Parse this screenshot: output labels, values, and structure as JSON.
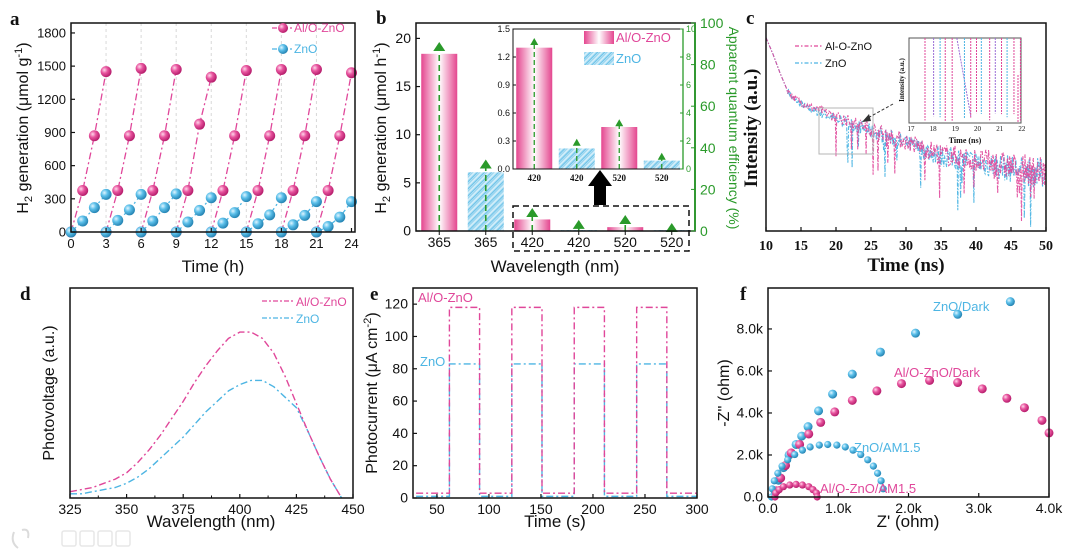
{
  "figure": {
    "panel_labels": [
      "a",
      "b",
      "c",
      "d",
      "e",
      "f"
    ]
  },
  "watermark": "大数跨境",
  "colors": {
    "al": "#e0479a",
    "zno": "#4db5e3",
    "aqe": "#2a9a2a",
    "axis": "#111111"
  },
  "chart_data": [
    {
      "panel": "a",
      "type": "scatter-line",
      "xlabel": "Time (h)",
      "ylabel": {
        "p1": "H",
        "sub": "2",
        "p2": " generation (μmol g",
        "sup": "-1",
        "p3": ")"
      },
      "xlim": [
        0,
        24.3
      ],
      "ylim": [
        0,
        1890
      ],
      "xticks": [
        0,
        3,
        6,
        9,
        12,
        15,
        18,
        21,
        24
      ],
      "xtick_labels": [
        "0",
        "3",
        "6",
        "9",
        "12",
        "15",
        "18",
        "21",
        "24"
      ],
      "yticks": [
        0,
        300,
        600,
        900,
        1200,
        1500,
        1800
      ],
      "ytick_labels": [
        "0",
        "300",
        "600",
        "900",
        "1200",
        "1500",
        "1800"
      ],
      "legend": "top-right",
      "series": [
        {
          "name": "Al/O-ZnO",
          "cycle_hours": 3,
          "cycles": [
            [
              0,
              375,
              870,
              1450
            ],
            [
              0,
              375,
              870,
              1480
            ],
            [
              0,
              375,
              870,
              1470
            ],
            [
              0,
              375,
              975,
              1400
            ],
            [
              0,
              375,
              870,
              1460
            ],
            [
              0,
              375,
              870,
              1470
            ],
            [
              0,
              375,
              870,
              1470
            ],
            [
              0,
              375,
              870,
              1440
            ]
          ]
        },
        {
          "name": "ZnO",
          "cycle_hours": 3,
          "cycles": [
            [
              0,
              100,
              220,
              340
            ],
            [
              0,
              105,
              200,
              340
            ],
            [
              0,
              100,
              220,
              345
            ],
            [
              0,
              90,
              195,
              310
            ],
            [
              0,
              80,
              175,
              320
            ],
            [
              0,
              75,
              155,
              310
            ],
            [
              0,
              65,
              150,
              275
            ],
            [
              0,
              50,
              135,
              275
            ]
          ]
        }
      ]
    },
    {
      "panel": "b",
      "type": "bar",
      "xlabel": "Wavelength (nm)",
      "ylabel": {
        "p1": "H",
        "sub": "2",
        "p2": " generation (μmol h",
        "sup": "-1",
        "p3": ")"
      },
      "y2label": "Apparent quantum efficiency (%)",
      "categories": [
        "365",
        "365",
        "420",
        "420",
        "520",
        "520"
      ],
      "groups": [
        "Al/O-ZnO",
        "ZnO",
        "Al/O-ZnO",
        "ZnO",
        "Al/O-ZnO",
        "ZnO"
      ],
      "values": [
        18.4,
        6.1,
        1.2,
        0.1,
        0.4,
        0.1
      ],
      "aqe": [
        87.5,
        31,
        7.7,
        2,
        4.3,
        0.5
      ],
      "ylim": [
        0,
        21.6
      ],
      "yticks": [
        0,
        5,
        10,
        15,
        20
      ],
      "ytick_labels": [
        "0",
        "5",
        "10",
        "15",
        "20"
      ],
      "y2lim": [
        0,
        100
      ],
      "y2ticks": [
        0,
        20,
        40,
        60,
        80,
        100
      ],
      "y2tick_labels": [
        "0",
        "20",
        "40",
        "60",
        "80",
        "100"
      ],
      "inset": {
        "categories": [
          "420",
          "420",
          "520",
          "520"
        ],
        "groups": [
          "Al/O-ZnO",
          "ZnO",
          "Al/O-ZnO",
          "ZnO"
        ],
        "values": [
          1.3,
          0.22,
          0.45,
          0.09
        ],
        "aqe": [
          9.0,
          1.8,
          3.2,
          0.8
        ],
        "ylim": [
          0,
          1.5
        ],
        "yticks": [
          0,
          0.3,
          0.6,
          0.9,
          1.2,
          1.5
        ],
        "ytick_labels": [
          "0.0",
          "0.3",
          "0.6",
          "0.9",
          "1.2",
          "1.5"
        ],
        "y2lim": [
          0,
          10
        ],
        "y2ticks": [
          0,
          2,
          4,
          6,
          8,
          10
        ],
        "y2tick_labels": [
          "0",
          "2",
          "4",
          "6",
          "8",
          "10"
        ],
        "legend": [
          "Al/O-ZnO",
          "ZnO"
        ]
      }
    },
    {
      "panel": "c",
      "type": "line",
      "xlabel": "Time (ns)",
      "ylabel": "Intensity (a.u.)",
      "xlim": [
        10,
        50
      ],
      "ylim": [
        0,
        1
      ],
      "xticks": [
        10,
        15,
        20,
        25,
        30,
        35,
        40,
        45,
        50
      ],
      "xtick_labels": [
        "10",
        "15",
        "20",
        "25",
        "30",
        "35",
        "40",
        "45",
        "50"
      ],
      "legend": [
        "Al-O-ZnO",
        "ZnO"
      ],
      "series": [
        {
          "name": "Al-O-ZnO",
          "t": [
            10,
            11,
            12,
            13,
            14,
            16,
            20,
            25,
            30,
            35,
            40,
            45,
            50
          ],
          "y": [
            0.93,
            0.85,
            0.76,
            0.68,
            0.64,
            0.6,
            0.55,
            0.49,
            0.43,
            0.37,
            0.34,
            0.31,
            0.28
          ]
        },
        {
          "name": "ZnO",
          "t": [
            10,
            11,
            12,
            13,
            14,
            16,
            20,
            25,
            30,
            35,
            40,
            45,
            50
          ],
          "y": [
            0.93,
            0.85,
            0.76,
            0.68,
            0.63,
            0.59,
            0.54,
            0.48,
            0.42,
            0.36,
            0.33,
            0.3,
            0.27
          ]
        }
      ],
      "inset": {
        "xlabel": "Time (ns)",
        "ylabel": "Intensity (a.u.)",
        "xtick_labels": [
          "17",
          "18",
          "19",
          "20",
          "21",
          "22"
        ]
      }
    },
    {
      "panel": "d",
      "type": "line",
      "xlabel": "Wavelength (nm)",
      "ylabel": "Photovoltage (a.u.)",
      "xlim": [
        325,
        450
      ],
      "ylim": [
        0,
        1
      ],
      "xticks": [
        325,
        350,
        375,
        400,
        425,
        450
      ],
      "xtick_labels": [
        "325",
        "350",
        "375",
        "400",
        "425",
        "450"
      ],
      "legend": "top-right",
      "x": [
        325,
        330,
        335,
        340,
        345,
        350,
        355,
        360,
        365,
        370,
        375,
        380,
        385,
        390,
        395,
        400,
        405,
        410,
        415,
        420,
        425,
        430,
        435,
        440,
        445
      ],
      "series": [
        {
          "name": "Al/O-ZnO",
          "values": [
            0.03,
            0.04,
            0.05,
            0.07,
            0.09,
            0.12,
            0.17,
            0.23,
            0.3,
            0.38,
            0.46,
            0.55,
            0.63,
            0.7,
            0.76,
            0.79,
            0.79,
            0.76,
            0.69,
            0.58,
            0.45,
            0.32,
            0.2,
            0.09,
            0.0
          ]
        },
        {
          "name": "ZnO",
          "values": [
            0.02,
            0.02,
            0.03,
            0.04,
            0.05,
            0.07,
            0.1,
            0.14,
            0.19,
            0.24,
            0.29,
            0.35,
            0.41,
            0.46,
            0.51,
            0.54,
            0.56,
            0.56,
            0.53,
            0.48,
            0.43,
            0.32,
            0.2,
            0.09,
            0.0
          ]
        }
      ]
    },
    {
      "panel": "e",
      "type": "line",
      "xlabel": "Time (s)",
      "ylabel": {
        "p1": "Photocurrent (μA cm",
        "sup": "-2",
        "p3": ")"
      },
      "xlim": [
        27,
        300
      ],
      "ylim": [
        0,
        130
      ],
      "xticks": [
        50,
        100,
        150,
        200,
        250,
        300
      ],
      "xtick_labels": [
        "50",
        "100",
        "150",
        "200",
        "250",
        "300"
      ],
      "yticks": [
        0,
        20,
        40,
        60,
        80,
        100,
        120
      ],
      "ytick_labels": [
        "0",
        "20",
        "40",
        "60",
        "80",
        "100",
        "120"
      ],
      "time_range": [
        30,
        300
      ],
      "series": [
        {
          "name": "Al/O-ZnO",
          "on_periods": [
            [
              62,
              91
            ],
            [
              122,
              151
            ],
            [
              182,
              211
            ],
            [
              242,
              271
            ]
          ],
          "on": 118,
          "off": 3
        },
        {
          "name": "ZnO",
          "on_periods": [
            [
              62,
              91
            ],
            [
              122,
              151
            ],
            [
              182,
              211
            ],
            [
              242,
              271
            ]
          ],
          "on": 83,
          "off": 1
        }
      ]
    },
    {
      "panel": "f",
      "type": "scatter",
      "xlabel": "Z' (ohm)",
      "ylabel": "-Z'' (ohm)",
      "units": "kΩ",
      "xlim": [
        0,
        4.0
      ],
      "ylim": [
        0,
        9.95
      ],
      "xticks": [
        0,
        1,
        2,
        3,
        4
      ],
      "xtick_labels": [
        "0.0",
        "1.0k",
        "2.0k",
        "3.0k",
        "4.0k"
      ],
      "yticks": [
        0,
        2,
        4,
        6,
        8
      ],
      "ytick_labels": [
        "0.0",
        "2.0k",
        "4.0k",
        "6.0k",
        "8.0k"
      ],
      "series": [
        {
          "name": "ZnO/Dark",
          "color": "zno",
          "points": [
            [
              0.1,
              0.3
            ],
            [
              0.15,
              0.8
            ],
            [
              0.22,
              1.4
            ],
            [
              0.3,
              2.0
            ],
            [
              0.4,
              2.5
            ],
            [
              0.48,
              2.9
            ],
            [
              0.57,
              3.35
            ],
            [
              0.72,
              4.1
            ],
            [
              0.92,
              4.9
            ],
            [
              1.2,
              5.85
            ],
            [
              1.6,
              6.9
            ],
            [
              2.1,
              7.8
            ],
            [
              2.7,
              8.7
            ],
            [
              3.45,
              9.3
            ]
          ]
        },
        {
          "name": "Al/O-ZnO/Dark",
          "color": "al",
          "points": [
            [
              0.12,
              0.3
            ],
            [
              0.18,
              0.9
            ],
            [
              0.25,
              1.5
            ],
            [
              0.33,
              2.1
            ],
            [
              0.45,
              2.5
            ],
            [
              0.58,
              3.0
            ],
            [
              0.75,
              3.55
            ],
            [
              0.95,
              4.05
            ],
            [
              1.2,
              4.6
            ],
            [
              1.55,
              5.05
            ],
            [
              1.9,
              5.4
            ],
            [
              2.3,
              5.55
            ],
            [
              2.7,
              5.45
            ],
            [
              3.05,
              5.15
            ],
            [
              3.4,
              4.7
            ],
            [
              3.65,
              4.25
            ],
            [
              3.9,
              3.65
            ],
            [
              4.0,
              3.05
            ]
          ]
        },
        {
          "name": "ZnO/AM1.5",
          "color": "zno",
          "points": [
            [
              0.05,
              0
            ],
            [
              0.06,
              0.39
            ],
            [
              0.09,
              0.77
            ],
            [
              0.14,
              1.13
            ],
            [
              0.2,
              1.47
            ],
            [
              0.28,
              1.77
            ],
            [
              0.38,
              2.02
            ],
            [
              0.49,
              2.23
            ],
            [
              0.6,
              2.38
            ],
            [
              0.73,
              2.47
            ],
            [
              0.85,
              2.5
            ],
            [
              0.98,
              2.47
            ],
            [
              1.1,
              2.38
            ],
            [
              1.21,
              2.23
            ],
            [
              1.32,
              2.02
            ],
            [
              1.42,
              1.77
            ],
            [
              1.5,
              1.47
            ],
            [
              1.56,
              1.13
            ],
            [
              1.61,
              0.77
            ],
            [
              1.64,
              0.39
            ]
          ]
        },
        {
          "name": "Al/O-ZnO/AM1.5",
          "color": "al",
          "points": [
            [
              0.1,
              0
            ],
            [
              0.11,
              0.19
            ],
            [
              0.16,
              0.35
            ],
            [
              0.22,
              0.49
            ],
            [
              0.31,
              0.57
            ],
            [
              0.4,
              0.6
            ],
            [
              0.49,
              0.57
            ],
            [
              0.58,
              0.49
            ],
            [
              0.64,
              0.35
            ],
            [
              0.69,
              0.19
            ],
            [
              0.7,
              0.0
            ]
          ]
        }
      ]
    }
  ]
}
